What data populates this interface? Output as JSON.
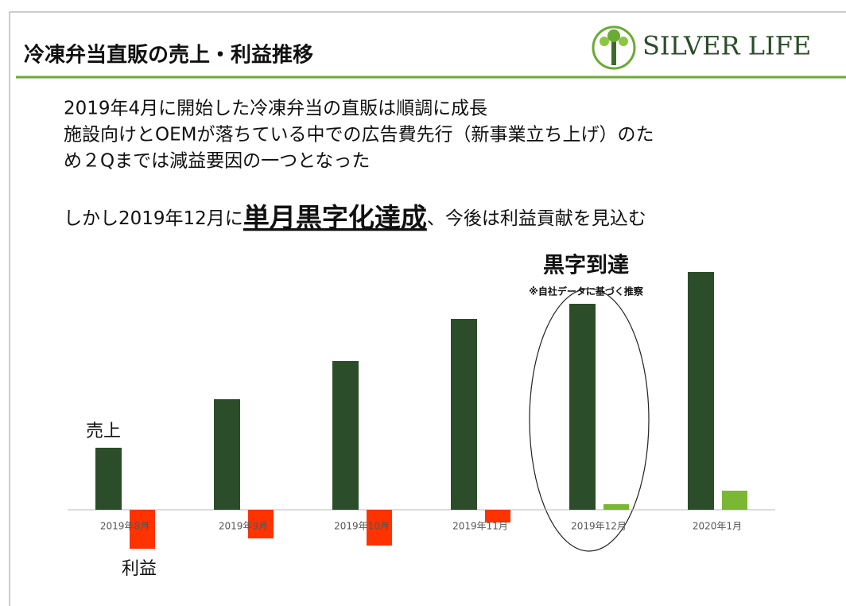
{
  "header": {
    "title": "冷凍弁当直販の売上・利益推移",
    "logo": "SILVER LIFE"
  },
  "body": {
    "lines": [
      "2019年4月に開始した冷凍弁当の直販は順調に成長",
      "施設向けとOEMが落ちている中での広告費先行（新事業立ち上げ）のた",
      "め２Qまでは減益要因の一つとなった"
    ],
    "highlight_line": {
      "before": "しかし2019年12月に",
      "emphasis": "単月黒字化達成",
      "after": "、今後は利益貢献を見込む"
    }
  },
  "chart_data": {
    "type": "bar",
    "categories": [
      "2019年8月",
      "2019年9月",
      "2019年10月",
      "2019年11月",
      "2019年12月",
      "2020年1月"
    ],
    "series": [
      {
        "name": "売上",
        "color": "#2b4d2a",
        "values": [
          78,
          139,
          187,
          240,
          259,
          299
        ]
      },
      {
        "name": "利益",
        "color": "#7ab833",
        "negative_color": "#ff3300",
        "values": [
          -49,
          -36,
          -45,
          -16,
          7,
          24
        ]
      }
    ],
    "ylim": [
      -59,
      311
    ],
    "annotations": {
      "title": "黒字到達",
      "note": "※自社データに基づく推察"
    }
  }
}
